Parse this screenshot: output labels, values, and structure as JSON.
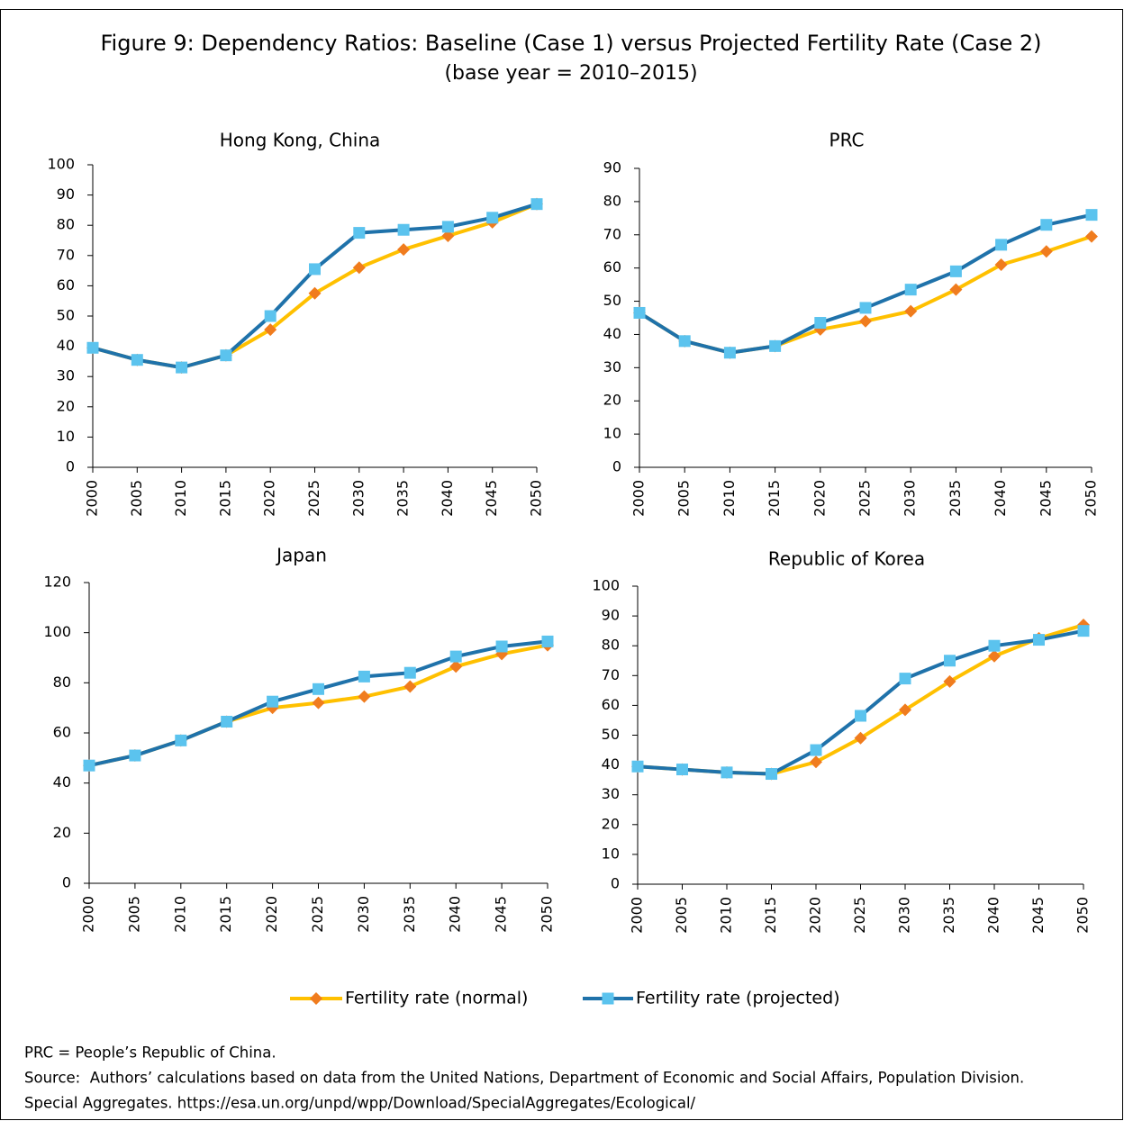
{
  "title": "Figure 9: Dependency Ratios: Baseline (Case 1) versus Projected Fertility Rate (Case 2)",
  "subtitle": "(base year = 2010–2015)",
  "chart_data": [
    {
      "type": "line",
      "title": "Hong Kong, China",
      "x": [
        2000,
        2005,
        2010,
        2015,
        2020,
        2025,
        2030,
        2035,
        2040,
        2045,
        2050
      ],
      "xlim": [
        2000,
        2050
      ],
      "ylim": [
        0,
        100
      ],
      "yticks": [
        0,
        10,
        20,
        30,
        40,
        50,
        60,
        70,
        80,
        90,
        100
      ],
      "series": [
        {
          "name": "Fertility rate (normal)",
          "color": "#FFC000",
          "marker_color": "#F07C1E",
          "marker": "diamond",
          "values": [
            39.5,
            35.5,
            33,
            37,
            45.5,
            57.5,
            66,
            72,
            76.5,
            81,
            87
          ]
        },
        {
          "name": "Fertility rate (projected)",
          "color": "#1F72AA",
          "marker_color": "#5BC3EE",
          "marker": "square",
          "values": [
            39.5,
            35.5,
            33,
            37,
            50,
            65.5,
            77.5,
            78.5,
            79.5,
            82.5,
            87
          ]
        }
      ]
    },
    {
      "type": "line",
      "title": "PRC",
      "x": [
        2000,
        2005,
        2010,
        2015,
        2020,
        2025,
        2030,
        2035,
        2040,
        2045,
        2050
      ],
      "xlim": [
        2000,
        2050
      ],
      "ylim": [
        0,
        90
      ],
      "yticks": [
        0,
        10,
        20,
        30,
        40,
        50,
        60,
        70,
        80,
        90
      ],
      "series": [
        {
          "name": "Fertility rate (normal)",
          "color": "#FFC000",
          "marker_color": "#F07C1E",
          "marker": "diamond",
          "values": [
            46.5,
            38,
            34.5,
            36.5,
            41.5,
            44,
            47,
            53.5,
            61,
            65,
            69.5
          ]
        },
        {
          "name": "Fertility rate (projected)",
          "color": "#1F72AA",
          "marker_color": "#5BC3EE",
          "marker": "square",
          "values": [
            46.5,
            38,
            34.5,
            36.5,
            43.5,
            48,
            53.5,
            59,
            67,
            73,
            76
          ]
        }
      ]
    },
    {
      "type": "line",
      "title": "Japan",
      "x": [
        2000,
        2005,
        2010,
        2015,
        2020,
        2025,
        2030,
        2035,
        2040,
        2045,
        2050
      ],
      "xlim": [
        2000,
        2050
      ],
      "ylim": [
        0,
        120
      ],
      "yticks": [
        0,
        20,
        40,
        60,
        80,
        100,
        120
      ],
      "series": [
        {
          "name": "Fertility rate (normal)",
          "color": "#FFC000",
          "marker_color": "#F07C1E",
          "marker": "diamond",
          "values": [
            47,
            51,
            57,
            64.5,
            70,
            72,
            74.5,
            78.5,
            86.5,
            91.5,
            95
          ]
        },
        {
          "name": "Fertility rate (projected)",
          "color": "#1F72AA",
          "marker_color": "#5BC3EE",
          "marker": "square",
          "values": [
            47,
            51,
            57,
            64.5,
            72.5,
            77.5,
            82.5,
            84,
            90.5,
            94.5,
            96.5
          ]
        }
      ]
    },
    {
      "type": "line",
      "title": "Republic of Korea",
      "x": [
        2000,
        2005,
        2010,
        2015,
        2020,
        2025,
        2030,
        2035,
        2040,
        2045,
        2050
      ],
      "xlim": [
        2000,
        2050
      ],
      "ylim": [
        0,
        100
      ],
      "yticks": [
        0,
        10,
        20,
        30,
        40,
        50,
        60,
        70,
        80,
        90,
        100
      ],
      "series": [
        {
          "name": "Fertility rate (normal)",
          "color": "#FFC000",
          "marker_color": "#F07C1E",
          "marker": "diamond",
          "values": [
            39.5,
            38.5,
            37.5,
            37,
            41,
            49,
            58.5,
            68,
            76.5,
            82.5,
            87
          ]
        },
        {
          "name": "Fertility rate (projected)",
          "color": "#1F72AA",
          "marker_color": "#5BC3EE",
          "marker": "square",
          "values": [
            39.5,
            38.5,
            37.5,
            37,
            45,
            56.5,
            69,
            75,
            80,
            82,
            85
          ]
        }
      ]
    }
  ],
  "notes": [
    "PRC = People’s Republic of China.",
    "Source:  Authors’ calculations based on data from the United Nations, Department of Economic and Social Affairs, Population Division.",
    "Special Aggregates. https://esa.un.org/unpd/wpp/Download/SpecialAggregates/Ecological/"
  ]
}
